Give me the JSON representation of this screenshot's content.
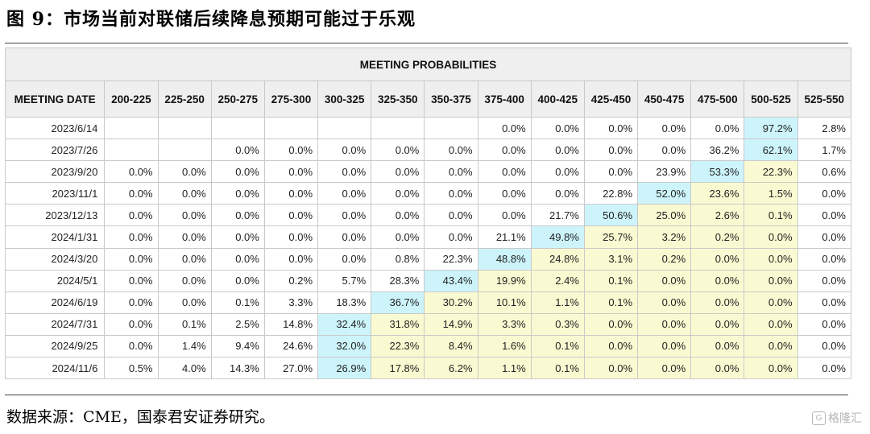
{
  "figure_title": "图 9：市场当前对联储后续降息预期可能过于乐观",
  "table": {
    "title": "MEETING PROBABILITIES",
    "date_header": "MEETING DATE",
    "ranges": [
      "200-225",
      "225-250",
      "250-275",
      "275-300",
      "300-325",
      "325-350",
      "350-375",
      "375-400",
      "400-425",
      "425-450",
      "450-475",
      "475-500",
      "500-525",
      "525-550"
    ],
    "rows": [
      {
        "date": "2023/6/14",
        "values": [
          "",
          "",
          "",
          "",
          "",
          "",
          "",
          "0.0%",
          "0.0%",
          "0.0%",
          "0.0%",
          "0.0%",
          "97.2%",
          "2.8%"
        ],
        "colors": [
          "w",
          "w",
          "w",
          "w",
          "w",
          "w",
          "w",
          "w",
          "w",
          "w",
          "w",
          "w",
          "b",
          "w"
        ]
      },
      {
        "date": "2023/7/26",
        "values": [
          "",
          "",
          "0.0%",
          "0.0%",
          "0.0%",
          "0.0%",
          "0.0%",
          "0.0%",
          "0.0%",
          "0.0%",
          "0.0%",
          "36.2%",
          "62.1%",
          "1.7%"
        ],
        "colors": [
          "w",
          "w",
          "w",
          "w",
          "w",
          "w",
          "w",
          "w",
          "w",
          "w",
          "w",
          "w",
          "b",
          "w"
        ]
      },
      {
        "date": "2023/9/20",
        "values": [
          "0.0%",
          "0.0%",
          "0.0%",
          "0.0%",
          "0.0%",
          "0.0%",
          "0.0%",
          "0.0%",
          "0.0%",
          "0.0%",
          "23.9%",
          "53.3%",
          "22.3%",
          "0.6%"
        ],
        "colors": [
          "w",
          "w",
          "w",
          "w",
          "w",
          "w",
          "w",
          "w",
          "w",
          "w",
          "w",
          "b",
          "y",
          "w"
        ]
      },
      {
        "date": "2023/11/1",
        "values": [
          "0.0%",
          "0.0%",
          "0.0%",
          "0.0%",
          "0.0%",
          "0.0%",
          "0.0%",
          "0.0%",
          "0.0%",
          "22.8%",
          "52.0%",
          "23.6%",
          "1.5%",
          "0.0%"
        ],
        "colors": [
          "w",
          "w",
          "w",
          "w",
          "w",
          "w",
          "w",
          "w",
          "w",
          "w",
          "b",
          "y",
          "y",
          "w"
        ]
      },
      {
        "date": "2023/12/13",
        "values": [
          "0.0%",
          "0.0%",
          "0.0%",
          "0.0%",
          "0.0%",
          "0.0%",
          "0.0%",
          "0.0%",
          "21.7%",
          "50.6%",
          "25.0%",
          "2.6%",
          "0.1%",
          "0.0%"
        ],
        "colors": [
          "w",
          "w",
          "w",
          "w",
          "w",
          "w",
          "w",
          "w",
          "w",
          "b",
          "y",
          "y",
          "y",
          "w"
        ]
      },
      {
        "date": "2024/1/31",
        "values": [
          "0.0%",
          "0.0%",
          "0.0%",
          "0.0%",
          "0.0%",
          "0.0%",
          "0.0%",
          "21.1%",
          "49.8%",
          "25.7%",
          "3.2%",
          "0.2%",
          "0.0%",
          "0.0%"
        ],
        "colors": [
          "w",
          "w",
          "w",
          "w",
          "w",
          "w",
          "w",
          "w",
          "b",
          "y",
          "y",
          "y",
          "y",
          "w"
        ]
      },
      {
        "date": "2024/3/20",
        "values": [
          "0.0%",
          "0.0%",
          "0.0%",
          "0.0%",
          "0.0%",
          "0.8%",
          "22.3%",
          "48.8%",
          "24.8%",
          "3.1%",
          "0.2%",
          "0.0%",
          "0.0%",
          "0.0%"
        ],
        "colors": [
          "w",
          "w",
          "w",
          "w",
          "w",
          "w",
          "w",
          "b",
          "y",
          "y",
          "y",
          "y",
          "y",
          "w"
        ]
      },
      {
        "date": "2024/5/1",
        "values": [
          "0.0%",
          "0.0%",
          "0.0%",
          "0.2%",
          "5.7%",
          "28.3%",
          "43.4%",
          "19.9%",
          "2.4%",
          "0.1%",
          "0.0%",
          "0.0%",
          "0.0%",
          "0.0%"
        ],
        "colors": [
          "w",
          "w",
          "w",
          "w",
          "w",
          "w",
          "b",
          "y",
          "y",
          "y",
          "y",
          "y",
          "y",
          "w"
        ]
      },
      {
        "date": "2024/6/19",
        "values": [
          "0.0%",
          "0.0%",
          "0.1%",
          "3.3%",
          "18.3%",
          "36.7%",
          "30.2%",
          "10.1%",
          "1.1%",
          "0.1%",
          "0.0%",
          "0.0%",
          "0.0%",
          "0.0%"
        ],
        "colors": [
          "w",
          "w",
          "w",
          "w",
          "w",
          "b",
          "y",
          "y",
          "y",
          "y",
          "y",
          "y",
          "y",
          "w"
        ]
      },
      {
        "date": "2024/7/31",
        "values": [
          "0.0%",
          "0.1%",
          "2.5%",
          "14.8%",
          "32.4%",
          "31.8%",
          "14.9%",
          "3.3%",
          "0.3%",
          "0.0%",
          "0.0%",
          "0.0%",
          "0.0%",
          "0.0%"
        ],
        "colors": [
          "w",
          "w",
          "w",
          "w",
          "b",
          "y",
          "y",
          "y",
          "y",
          "y",
          "y",
          "y",
          "y",
          "w"
        ]
      },
      {
        "date": "2024/9/25",
        "values": [
          "0.0%",
          "1.4%",
          "9.4%",
          "24.6%",
          "32.0%",
          "22.3%",
          "8.4%",
          "1.6%",
          "0.1%",
          "0.0%",
          "0.0%",
          "0.0%",
          "0.0%",
          "0.0%"
        ],
        "colors": [
          "w",
          "w",
          "w",
          "w",
          "b",
          "y",
          "y",
          "y",
          "y",
          "y",
          "y",
          "y",
          "y",
          "w"
        ]
      },
      {
        "date": "2024/11/6",
        "values": [
          "0.5%",
          "4.0%",
          "14.3%",
          "27.0%",
          "26.9%",
          "17.8%",
          "6.2%",
          "1.1%",
          "0.1%",
          "0.0%",
          "0.0%",
          "0.0%",
          "0.0%",
          "0.0%"
        ],
        "colors": [
          "w",
          "w",
          "w",
          "w",
          "b",
          "y",
          "y",
          "y",
          "y",
          "y",
          "y",
          "y",
          "y",
          "w"
        ]
      }
    ]
  },
  "colors": {
    "w": "#ffffff",
    "y": "#fafad2",
    "b": "#cdf4fb"
  },
  "source": "数据来源：CME，国泰君安证券研究。",
  "watermark": "格隆汇"
}
